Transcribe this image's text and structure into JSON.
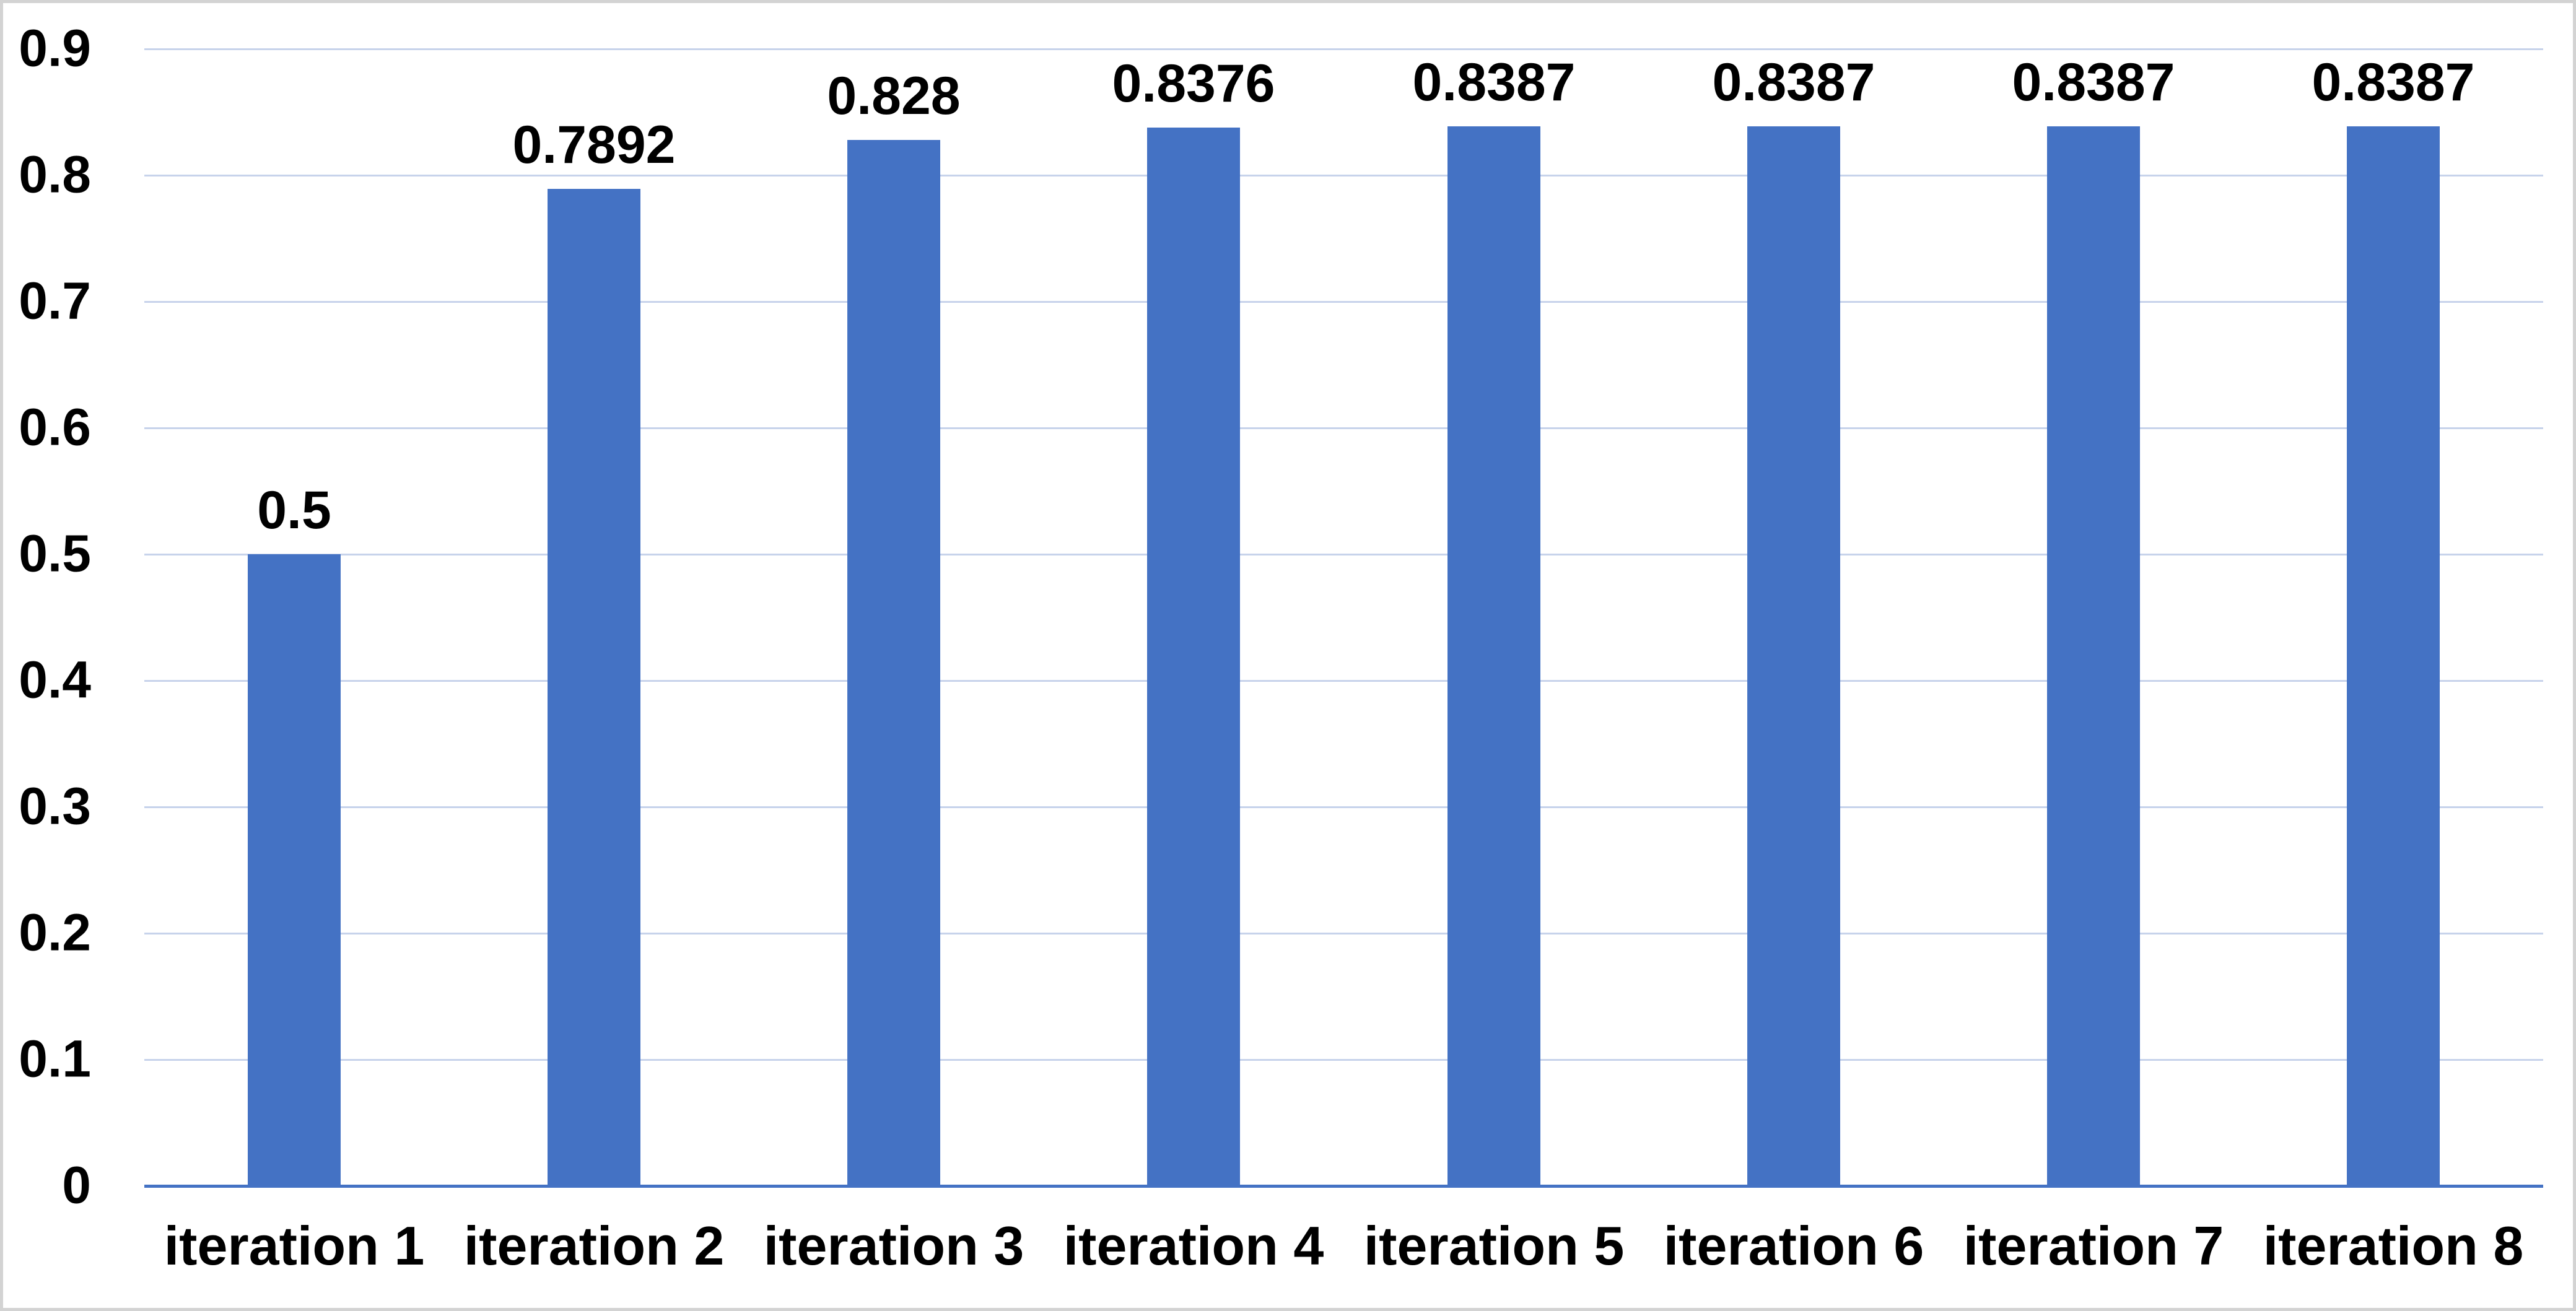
{
  "chart_data": {
    "type": "bar",
    "title": "",
    "xlabel": "",
    "ylabel": "",
    "categories": [
      "iteration 1",
      "iteration 2",
      "iteration 3",
      "iteration 4",
      "iteration 5",
      "iteration 6",
      "iteration 7",
      "iteration 8"
    ],
    "values": [
      0.5,
      0.7892,
      0.828,
      0.8376,
      0.8387,
      0.8387,
      0.8387,
      0.8387
    ],
    "value_labels": [
      "0.5",
      "0.7892",
      "0.828",
      "0.8376",
      "0.8387",
      "0.8387",
      "0.8387",
      "0.8387"
    ],
    "ylim": [
      0,
      0.9
    ],
    "ytick_labels": [
      "0",
      "0.1",
      "0.2",
      "0.3",
      "0.4",
      "0.5",
      "0.6",
      "0.7",
      "0.8",
      "0.9"
    ],
    "grid": "horizontal-on",
    "legend": "none",
    "colors": {
      "bar": "#4472C4",
      "axis_line": "#4472C4",
      "gridline": "#C7D3EB",
      "label_text": "#000000",
      "background": "#FFFFFF",
      "frame_border": "#D3D3D3"
    }
  }
}
